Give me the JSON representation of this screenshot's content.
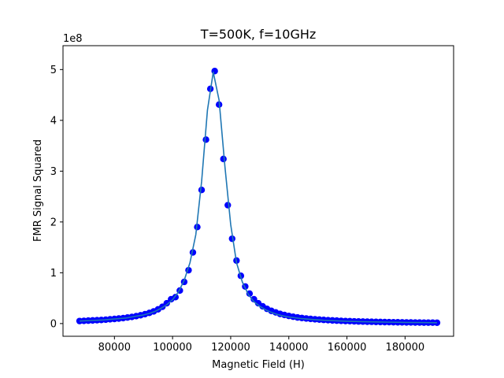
{
  "chart_data": {
    "type": "scatter",
    "title": "T=500K, f=10GHz",
    "xlabel": "Magnetic Field (H)",
    "ylabel": "FMR Signal Squared",
    "y_offset_text": "1e8",
    "y_multiplier": 100000000,
    "xlim": [
      62300,
      196700
    ],
    "ylim": [
      -0.25,
      5.47
    ],
    "x_ticks": [
      80000,
      100000,
      120000,
      140000,
      160000,
      180000
    ],
    "x_tick_labels": [
      "80000",
      "100000",
      "120000",
      "140000",
      "160000",
      "180000"
    ],
    "y_ticks": [
      0,
      1,
      2,
      3,
      4,
      5
    ],
    "y_tick_labels": [
      "0",
      "1",
      "2",
      "3",
      "4",
      "5"
    ],
    "grid": false,
    "line_color": "#1f77b4",
    "marker_color": "#0000ff",
    "series": [
      {
        "style": "line",
        "x": [
          68000,
          70000,
          72000,
          74000,
          76000,
          78000,
          80000,
          82000,
          84000,
          86000,
          88000,
          90000,
          92000,
          94000,
          96000,
          98000,
          100000,
          102000,
          104000,
          106000,
          108000,
          110000,
          112000,
          114000,
          116000,
          118000,
          120000,
          122000,
          124000,
          126000,
          128000,
          130000,
          132000,
          134000,
          136000,
          138000,
          140000,
          144000,
          148000,
          152000,
          156000,
          160000,
          165000,
          170000,
          175000,
          180000,
          185000,
          191000
        ],
        "y": [
          0.05,
          0.055,
          0.06,
          0.065,
          0.07,
          0.08,
          0.09,
          0.1,
          0.11,
          0.13,
          0.15,
          0.17,
          0.2,
          0.24,
          0.3,
          0.37,
          0.47,
          0.62,
          0.85,
          1.2,
          1.75,
          2.8,
          4.2,
          4.95,
          4.4,
          3.1,
          1.95,
          1.2,
          0.82,
          0.58,
          0.43,
          0.34,
          0.27,
          0.22,
          0.18,
          0.15,
          0.13,
          0.1,
          0.08,
          0.065,
          0.055,
          0.045,
          0.038,
          0.032,
          0.027,
          0.023,
          0.02,
          0.017
        ]
      },
      {
        "style": "markers",
        "x": [
          68000,
          69500,
          71000,
          72500,
          74000,
          75500,
          77000,
          78500,
          80000,
          81500,
          83000,
          84500,
          86000,
          87500,
          89000,
          90500,
          92000,
          93500,
          95000,
          96500,
          98000,
          99500,
          101000,
          102500,
          104000,
          105500,
          107000,
          108500,
          110000,
          111500,
          113000,
          114500,
          116000,
          117500,
          119000,
          120500,
          122000,
          123500,
          125000,
          126500,
          128000,
          129500,
          131000,
          132500,
          134000,
          135500,
          137000,
          138500,
          140000,
          141500,
          143000,
          144500,
          146000,
          147500,
          149000,
          150500,
          152000,
          153500,
          155000,
          156500,
          158000,
          159500,
          161000,
          162500,
          164000,
          165500,
          167000,
          168500,
          170000,
          171500,
          173000,
          174500,
          176000,
          177500,
          179000,
          180500,
          182000,
          183500,
          185000,
          186500,
          188000,
          189500,
          191000
        ],
        "y": [
          0.05,
          0.054,
          0.058,
          0.062,
          0.066,
          0.071,
          0.077,
          0.084,
          0.091,
          0.099,
          0.108,
          0.119,
          0.131,
          0.146,
          0.164,
          0.185,
          0.21,
          0.24,
          0.28,
          0.33,
          0.4,
          0.48,
          0.52,
          0.65,
          0.82,
          1.05,
          1.4,
          1.9,
          2.63,
          3.62,
          4.62,
          4.97,
          4.31,
          3.24,
          2.33,
          1.67,
          1.24,
          0.94,
          0.73,
          0.59,
          0.48,
          0.4,
          0.34,
          0.29,
          0.25,
          0.22,
          0.19,
          0.17,
          0.15,
          0.135,
          0.12,
          0.11,
          0.1,
          0.092,
          0.085,
          0.078,
          0.072,
          0.067,
          0.062,
          0.058,
          0.054,
          0.05,
          0.047,
          0.044,
          0.041,
          0.039,
          0.037,
          0.035,
          0.033,
          0.031,
          0.029,
          0.028,
          0.026,
          0.025,
          0.024,
          0.023,
          0.022,
          0.021,
          0.02,
          0.019,
          0.018,
          0.018,
          0.017
        ]
      }
    ]
  }
}
